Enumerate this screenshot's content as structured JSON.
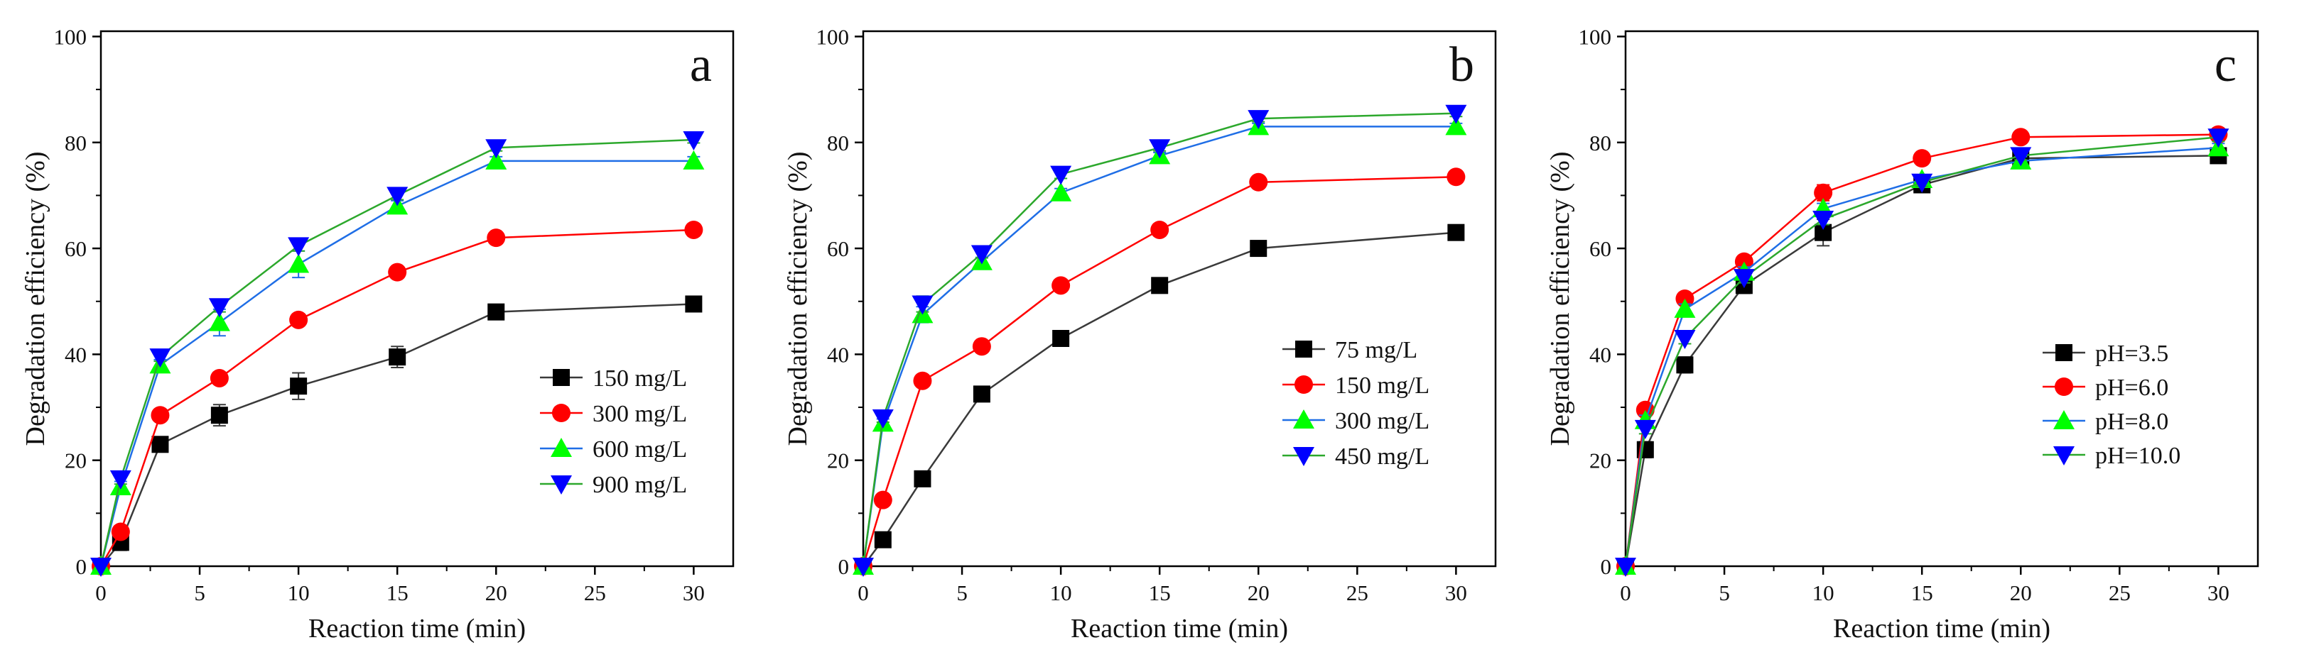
{
  "figure": {
    "panels": [
      "a",
      "b",
      "c"
    ]
  },
  "chart_data": [
    {
      "type": "line",
      "panel_label": "a",
      "title": "",
      "xlabel": "Reaction time (min)",
      "ylabel": "Degradation efficiency (%)",
      "xlim": [
        0,
        32
      ],
      "ylim": [
        0,
        101
      ],
      "xticks": [
        0,
        5,
        10,
        15,
        20,
        25,
        30
      ],
      "yticks": [
        0,
        20,
        40,
        60,
        80,
        100
      ],
      "x": [
        0,
        1,
        3,
        6,
        10,
        15,
        20,
        30
      ],
      "legend_position": "middle-right",
      "series": [
        {
          "name": "150 mg/L",
          "marker": "square",
          "color": "#000000",
          "line_color": "#3a3a3a",
          "values": [
            0,
            4.5,
            23,
            28.5,
            34,
            39.5,
            48,
            49.5
          ],
          "errors": [
            0,
            1.5,
            1.2,
            2,
            2.5,
            2,
            1,
            0.8
          ]
        },
        {
          "name": "300 mg/L",
          "marker": "circle",
          "color": "#ff0000",
          "line_color": "#ff0000",
          "values": [
            0,
            6.5,
            28.5,
            35.5,
            46.5,
            55.5,
            62,
            63.5
          ],
          "errors": [
            0,
            0.8,
            1,
            0.8,
            0.8,
            0.6,
            0.5,
            0.5
          ]
        },
        {
          "name": "600 mg/L",
          "marker": "triangle-up",
          "color": "#00ff00",
          "line_color": "#1f6ee6",
          "values": [
            0,
            15,
            38,
            46,
            57,
            68,
            76.5,
            76.5
          ],
          "errors": [
            0,
            1,
            1,
            2.5,
            2.5,
            1,
            0.8,
            0.8
          ]
        },
        {
          "name": "900 mg/L",
          "marker": "triangle-down",
          "color": "#0000ff",
          "line_color": "#2ca82c",
          "values": [
            0,
            16.5,
            39.5,
            49,
            60.5,
            70,
            79,
            80.5
          ],
          "errors": [
            0,
            1,
            0.8,
            1,
            1,
            0.8,
            0.6,
            0.6
          ]
        }
      ]
    },
    {
      "type": "line",
      "panel_label": "b",
      "title": "",
      "xlabel": "Reaction time (min)",
      "ylabel": "Degradation efficiency (%)",
      "xlim": [
        0,
        32
      ],
      "ylim": [
        0,
        101
      ],
      "xticks": [
        0,
        5,
        10,
        15,
        20,
        25,
        30
      ],
      "yticks": [
        0,
        20,
        40,
        60,
        80,
        100
      ],
      "x": [
        0,
        1,
        3,
        6,
        10,
        15,
        20,
        30
      ],
      "legend_position": "middle-right",
      "series": [
        {
          "name": "75 mg/L",
          "marker": "square",
          "color": "#000000",
          "line_color": "#3a3a3a",
          "values": [
            0,
            5,
            16.5,
            32.5,
            43,
            53,
            60,
            63
          ],
          "errors": [
            0,
            0.6,
            0.6,
            0.6,
            0.6,
            0.6,
            0.6,
            0.6
          ]
        },
        {
          "name": "150 mg/L",
          "marker": "circle",
          "color": "#ff0000",
          "line_color": "#ff0000",
          "values": [
            0,
            12.5,
            35,
            41.5,
            53,
            63.5,
            72.5,
            73.5
          ],
          "errors": [
            0,
            0.6,
            0.6,
            0.6,
            0.8,
            0.6,
            0.6,
            0.6
          ]
        },
        {
          "name": "300 mg/L",
          "marker": "triangle-up",
          "color": "#00ff00",
          "line_color": "#1f6ee6",
          "values": [
            0,
            27,
            47.5,
            57.5,
            70.5,
            77.5,
            83,
            83
          ],
          "errors": [
            0,
            0.8,
            1.5,
            0.8,
            0.8,
            0.6,
            0.6,
            0.6
          ]
        },
        {
          "name": "450 mg/L",
          "marker": "triangle-down",
          "color": "#0000ff",
          "line_color": "#2ca82c",
          "values": [
            0,
            28,
            49.5,
            59,
            74,
            79,
            84.5,
            85.5
          ],
          "errors": [
            0,
            0.8,
            1.5,
            0.8,
            0.8,
            0.6,
            0.6,
            0.6
          ]
        }
      ]
    },
    {
      "type": "line",
      "panel_label": "c",
      "title": "",
      "xlabel": "Reaction time (min)",
      "ylabel": "Degradation efficiency (%)",
      "xlim": [
        0,
        32
      ],
      "ylim": [
        0,
        101
      ],
      "xticks": [
        0,
        5,
        10,
        15,
        20,
        25,
        30
      ],
      "yticks": [
        0,
        20,
        40,
        60,
        80,
        100
      ],
      "x": [
        0,
        1,
        3,
        6,
        10,
        15,
        20,
        30
      ],
      "legend_position": "middle-right",
      "series": [
        {
          "name": "pH=3.5",
          "marker": "square",
          "color": "#000000",
          "line_color": "#3a3a3a",
          "values": [
            0,
            22,
            38,
            53,
            63,
            72,
            77,
            77.5
          ],
          "errors": [
            0,
            1.5,
            1.5,
            1.5,
            2.5,
            1,
            0.8,
            0.8
          ]
        },
        {
          "name": "pH=6.0",
          "marker": "circle",
          "color": "#ff0000",
          "line_color": "#ff0000",
          "values": [
            0,
            29.5,
            50.5,
            57.5,
            70.5,
            77,
            81,
            81.5
          ],
          "errors": [
            0,
            1,
            1,
            1,
            1.5,
            0.8,
            0.8,
            0.8
          ]
        },
        {
          "name": "pH=8.0",
          "marker": "triangle-up",
          "color": "#00ff00",
          "line_color": "#1f6ee6",
          "values": [
            0,
            27.5,
            48.5,
            55.5,
            67.5,
            73,
            76.5,
            79
          ],
          "errors": [
            0,
            1,
            1,
            1,
            1,
            0.8,
            0.8,
            0.8
          ]
        },
        {
          "name": "pH=10.0",
          "marker": "triangle-down",
          "color": "#0000ff",
          "line_color": "#2ca82c",
          "values": [
            0,
            26,
            43,
            54.5,
            65.5,
            72.5,
            77.5,
            81
          ],
          "errors": [
            0,
            1,
            1,
            1,
            1,
            0.8,
            0.8,
            0.8
          ]
        }
      ]
    }
  ]
}
